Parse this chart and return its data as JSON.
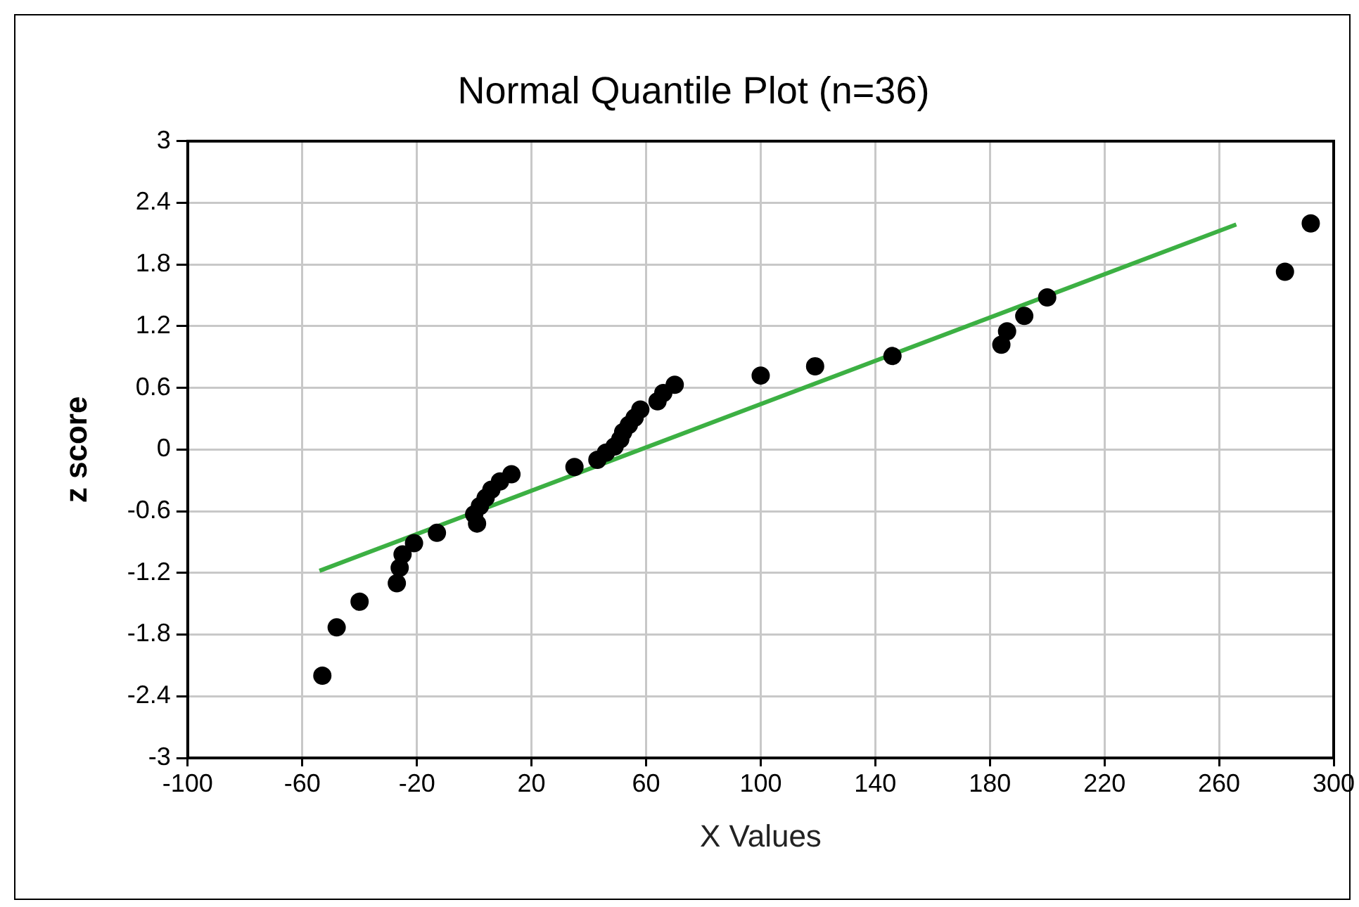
{
  "chart_data": {
    "type": "scatter",
    "title": "Normal Quantile Plot (n=36)",
    "xlabel": "X Values",
    "ylabel": "z score",
    "xlim": [
      -100,
      300
    ],
    "xticks": [
      -100,
      -60,
      -20,
      20,
      60,
      100,
      140,
      180,
      220,
      260,
      300
    ],
    "ylim": [
      -3,
      3
    ],
    "yticks": [
      -3,
      -2.4,
      -1.8,
      -1.2,
      -0.6,
      0,
      0.6,
      1.2,
      1.8,
      2.4,
      3
    ],
    "grid": true,
    "legend": false,
    "marker": "circle",
    "series": [
      {
        "type": "scatter",
        "color": "#000000",
        "x": [
          -53,
          -48,
          -40,
          -27,
          -26,
          -25,
          -21,
          -13,
          1,
          0,
          2,
          4,
          6,
          9,
          13,
          35,
          43,
          46,
          49,
          51,
          52,
          54,
          56,
          58,
          64,
          66,
          70,
          100,
          119,
          146,
          184,
          186,
          192,
          200,
          283,
          292
        ],
        "values": [
          -2.2,
          -1.73,
          -1.48,
          -1.3,
          -1.15,
          -1.02,
          -0.91,
          -0.81,
          -0.72,
          -0.63,
          -0.55,
          -0.47,
          -0.39,
          -0.31,
          -0.24,
          -0.17,
          -0.1,
          -0.03,
          0.03,
          0.1,
          0.17,
          0.24,
          0.31,
          0.39,
          0.47,
          0.55,
          0.63,
          0.72,
          0.81,
          0.91,
          1.02,
          1.15,
          1.3,
          1.48,
          1.73,
          2.2
        ]
      },
      {
        "type": "line",
        "color": "#3cb043",
        "marker": "none",
        "line_style": "solid",
        "x": [
          -54,
          266
        ],
        "values": [
          -1.18,
          2.19
        ]
      }
    ]
  }
}
